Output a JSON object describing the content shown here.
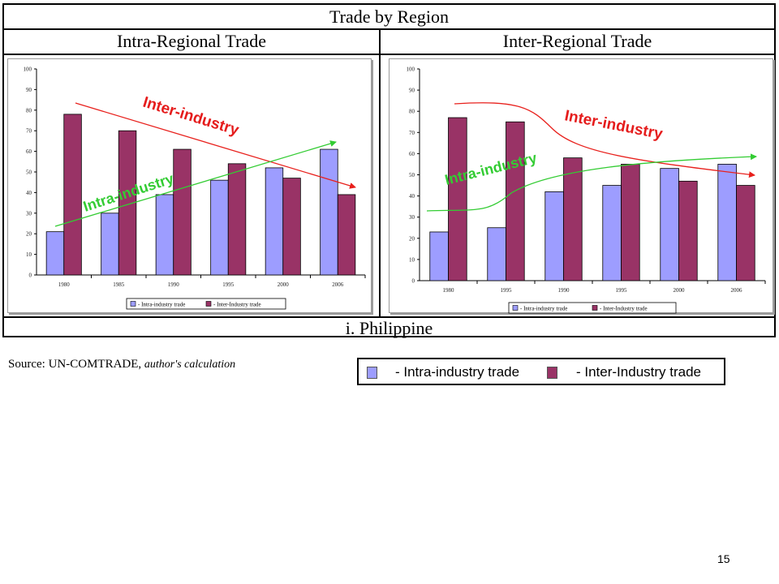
{
  "header": {
    "title": "Trade by Region"
  },
  "footer": {
    "country": "i. Philippine"
  },
  "source": {
    "prefix": "Source: UN-COMTRADE,",
    "suffix": "author's calculation"
  },
  "legend": {
    "intra_label": "- Intra-industry trade",
    "inter_label": "- Inter-Industry trade",
    "small_intra_label": "- Intra-industry trade",
    "small_inter_label": "- Inter-Industry trade"
  },
  "colors": {
    "intra": "#9d9dff",
    "inter": "#993366",
    "arrow_red": "#e8201c",
    "arrow_green": "#33cc33",
    "trend_red_text": "#e51c1c",
    "trend_green_text": "#33cc33"
  },
  "page_number": "15",
  "chart_data": [
    {
      "type": "bar",
      "title": "Intra-Regional Trade",
      "categories": [
        "1980",
        "1985",
        "1990",
        "1995",
        "2000",
        "2006"
      ],
      "series": [
        {
          "name": "- Intra-industry trade",
          "values": [
            21,
            30,
            39,
            46,
            52,
            61
          ]
        },
        {
          "name": "- Inter-Industry trade",
          "values": [
            78,
            70,
            61,
            54,
            47,
            39
          ]
        }
      ],
      "yticks": [
        "0",
        "10",
        "20",
        "30",
        "40",
        "50",
        "60",
        "70",
        "80",
        "90",
        "100"
      ],
      "ylim": [
        0,
        100
      ],
      "grid": false,
      "legend": "bottom",
      "annotations": [
        {
          "text": "Inter-industry",
          "color": "red"
        },
        {
          "text": "Intra-industry",
          "color": "green"
        }
      ]
    },
    {
      "type": "bar",
      "title": "Inter-Regional Trade",
      "categories": [
        "1980",
        "1995",
        "1990",
        "1995",
        "2000",
        "2006"
      ],
      "series": [
        {
          "name": "- Intra-industry trade",
          "values": [
            23,
            25,
            42,
            45,
            53,
            55
          ]
        },
        {
          "name": "- Inter-Industry trade",
          "values": [
            77,
            75,
            58,
            55,
            47,
            45
          ]
        }
      ],
      "yticks": [
        "0",
        "10",
        "20",
        "30",
        "40",
        "50",
        "60",
        "70",
        "80",
        "90",
        "100"
      ],
      "ylim": [
        0,
        100
      ],
      "grid": false,
      "legend": "bottom",
      "annotations": [
        {
          "text": "Inter-industry",
          "color": "red"
        },
        {
          "text": "Intra-industry",
          "color": "green"
        }
      ]
    }
  ]
}
